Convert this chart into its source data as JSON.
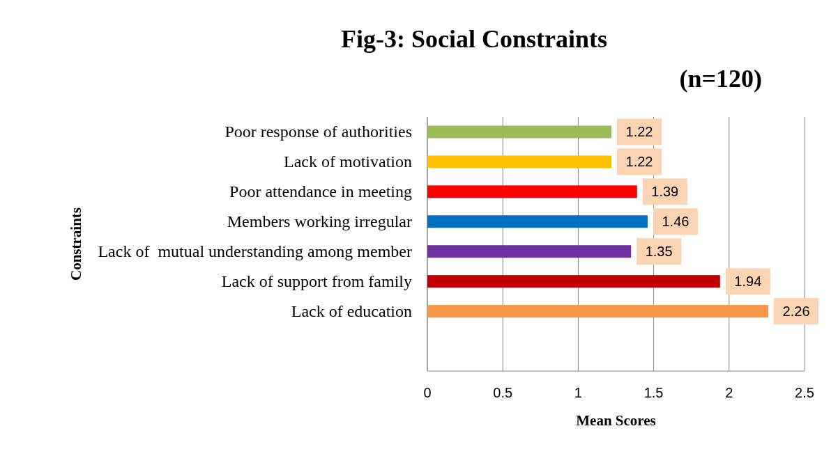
{
  "chart_data": {
    "type": "bar",
    "orientation": "horizontal",
    "title": "Fig-3: Social Constraints",
    "subtitle": "(n=120)",
    "xlabel": "Mean Scores",
    "ylabel": "Constraints",
    "categories": [
      "Poor response of authorities",
      "Lack of motivation",
      "Poor attendance in meeting",
      "Members working irregular",
      "Lack of  mutual understanding among member",
      "Lack of support from family",
      "Lack of education"
    ],
    "values": [
      1.22,
      1.22,
      1.39,
      1.46,
      1.35,
      1.94,
      2.26
    ],
    "colors": [
      "#9bbb59",
      "#ffc000",
      "#ff0000",
      "#0070c0",
      "#7030a0",
      "#c00000",
      "#f79646"
    ],
    "xlim": [
      0,
      2.5
    ],
    "xticks": [
      0,
      0.5,
      1,
      1.5,
      2,
      2.5
    ],
    "grid": "x",
    "data_labels": true
  }
}
